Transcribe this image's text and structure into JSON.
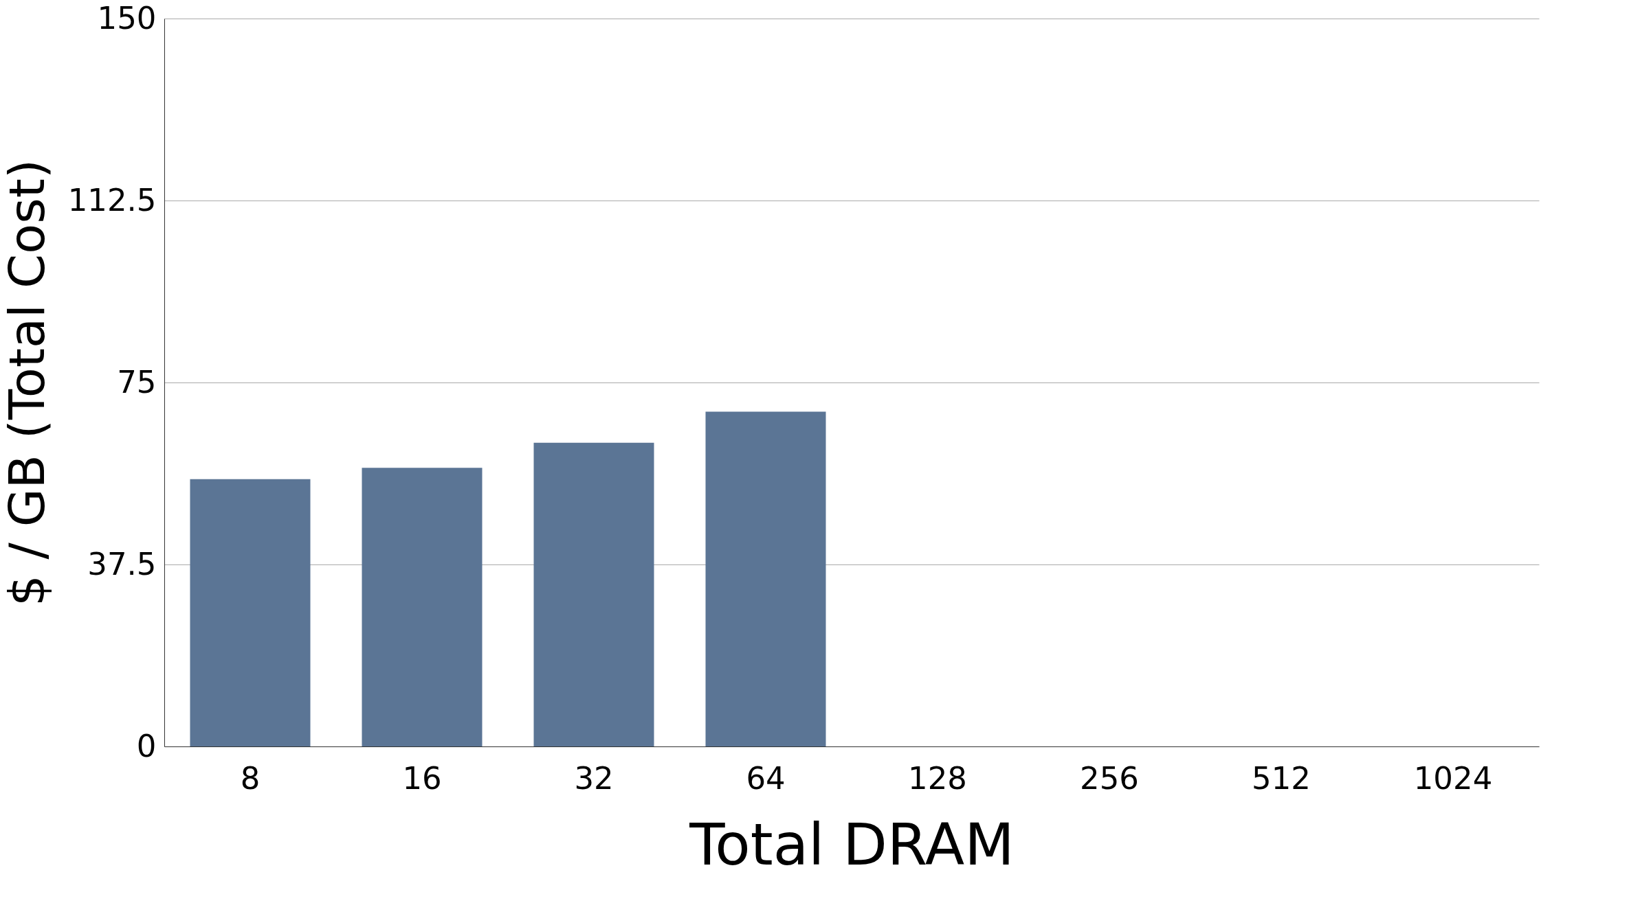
{
  "chart_data": {
    "type": "bar",
    "xlabel": "Total DRAM",
    "ylabel": "$ / GB (Total Cost)",
    "categories": [
      "8",
      "16",
      "32",
      "64",
      "128",
      "256",
      "512",
      "1024"
    ],
    "series": [
      {
        "color": "#5b7595",
        "values": [
          55.1,
          57.4,
          62.6,
          69.0,
          null,
          null,
          null,
          null
        ]
      }
    ],
    "ylim": [
      0,
      150
    ],
    "yticks": [
      0,
      37.5,
      75,
      112.5,
      150
    ],
    "grid": "y"
  }
}
